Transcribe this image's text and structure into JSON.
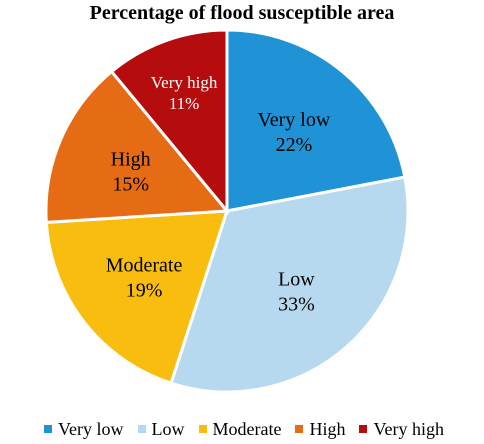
{
  "chart_data": {
    "type": "pie",
    "title": "Percentage of flood susceptible area",
    "slices": [
      {
        "label": "Very low",
        "value": 22,
        "display": "22%",
        "color": "#1f93d6",
        "text_color": "#000000"
      },
      {
        "label": "Low",
        "value": 33,
        "display": "33%",
        "color": "#b7d9ef",
        "text_color": "#000000"
      },
      {
        "label": "Moderate",
        "value": 19,
        "display": "19%",
        "color": "#f9bd0f",
        "text_color": "#000000"
      },
      {
        "label": "High",
        "value": 15,
        "display": "15%",
        "color": "#e56b14",
        "text_color": "#000000"
      },
      {
        "label": "Very high",
        "value": 11,
        "display": "11%",
        "color": "#b50d0d",
        "text_color": "#ffffff"
      }
    ],
    "legend": {
      "position": "bottom",
      "entries": [
        "Very low",
        "Low",
        "Moderate",
        "High",
        "Very high"
      ]
    }
  }
}
